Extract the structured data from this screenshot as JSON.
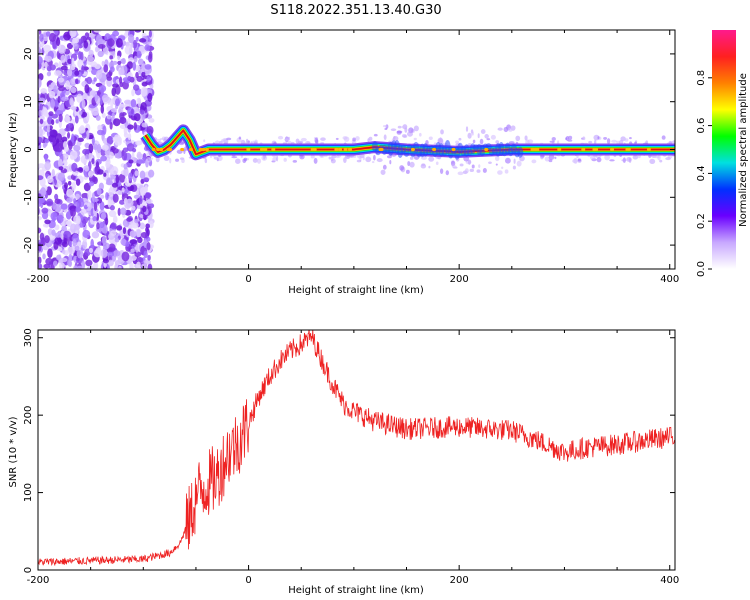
{
  "title": "S118.2022.351.13.40.G30",
  "colors": {
    "snr_line": "#ee2222",
    "ridge": "#dd1111",
    "scatter": "#7b2fe0",
    "colorbar_stops": [
      "#ffffff",
      "#c8a8ff",
      "#6a00ff",
      "#0030ff",
      "#00e0e0",
      "#00ff00",
      "#ffff00",
      "#ff8000",
      "#ff2020",
      "#ff1a8c"
    ]
  },
  "chart_data": [
    {
      "type": "heatmap",
      "name": "spectrogram",
      "xlabel": "Height of straight line (km)",
      "ylabel": "Frequency (Hz)",
      "xlim": [
        -200,
        405
      ],
      "ylim": [
        -25,
        25
      ],
      "xticks": [
        "-200",
        "0",
        "200",
        "400"
      ],
      "xtick_values": [
        -200,
        0,
        200,
        400
      ],
      "yticks": [
        "-20",
        "-10",
        "0",
        "10",
        "20"
      ],
      "ytick_values": [
        -20,
        -10,
        0,
        10,
        20
      ],
      "noise_region_x": [
        -205,
        -98
      ],
      "ridge_frequency_hz": 0,
      "ridge_points": [
        {
          "x": -98,
          "y": 3
        },
        {
          "x": -92,
          "y": 1
        },
        {
          "x": -86,
          "y": -0.5
        },
        {
          "x": -80,
          "y": 0
        },
        {
          "x": -74,
          "y": 1
        },
        {
          "x": -68,
          "y": 2.5
        },
        {
          "x": -62,
          "y": 4
        },
        {
          "x": -56,
          "y": 2
        },
        {
          "x": -50,
          "y": -1
        },
        {
          "x": -44,
          "y": -0.5
        },
        {
          "x": -38,
          "y": 0
        },
        {
          "x": 0,
          "y": 0
        },
        {
          "x": 100,
          "y": 0
        },
        {
          "x": 120,
          "y": 0.5
        },
        {
          "x": 150,
          "y": 0
        },
        {
          "x": 200,
          "y": -0.5
        },
        {
          "x": 250,
          "y": 0
        },
        {
          "x": 300,
          "y": 0
        },
        {
          "x": 405,
          "y": 0
        }
      ],
      "colorbar": {
        "label": "Normalized spectral amplitude",
        "range": [
          0,
          1
        ],
        "ticks": [
          "0.0",
          "0.2",
          "0.4",
          "0.6",
          "0.8"
        ],
        "tick_values": [
          0.0,
          0.2,
          0.4,
          0.6,
          0.8
        ]
      }
    },
    {
      "type": "line",
      "name": "snr",
      "xlabel": "Height of straight line (km)",
      "ylabel": "SNR (10 * v/v)",
      "xlim": [
        -200,
        405
      ],
      "ylim": [
        0,
        310
      ],
      "xticks": [
        "-200",
        "0",
        "200",
        "400"
      ],
      "xtick_values": [
        -200,
        0,
        200,
        400
      ],
      "yticks": [
        "0",
        "100",
        "200",
        "300"
      ],
      "ytick_values": [
        0,
        100,
        200,
        300
      ],
      "series": [
        {
          "x": [
            -205,
            -150,
            -100,
            -75,
            -65,
            -55,
            -48,
            -40,
            -30,
            -20,
            -10,
            0,
            10,
            20,
            30,
            40,
            50,
            60,
            70,
            80,
            90,
            100,
            120,
            150,
            200,
            250,
            270,
            290,
            300,
            320,
            350,
            380,
            405
          ],
          "y": [
            10,
            12,
            14,
            22,
            35,
            70,
            100,
            110,
            120,
            150,
            165,
            190,
            225,
            250,
            270,
            283,
            292,
            302,
            270,
            240,
            215,
            205,
            192,
            182,
            185,
            180,
            170,
            158,
            152,
            158,
            162,
            168,
            172
          ]
        }
      ]
    }
  ]
}
